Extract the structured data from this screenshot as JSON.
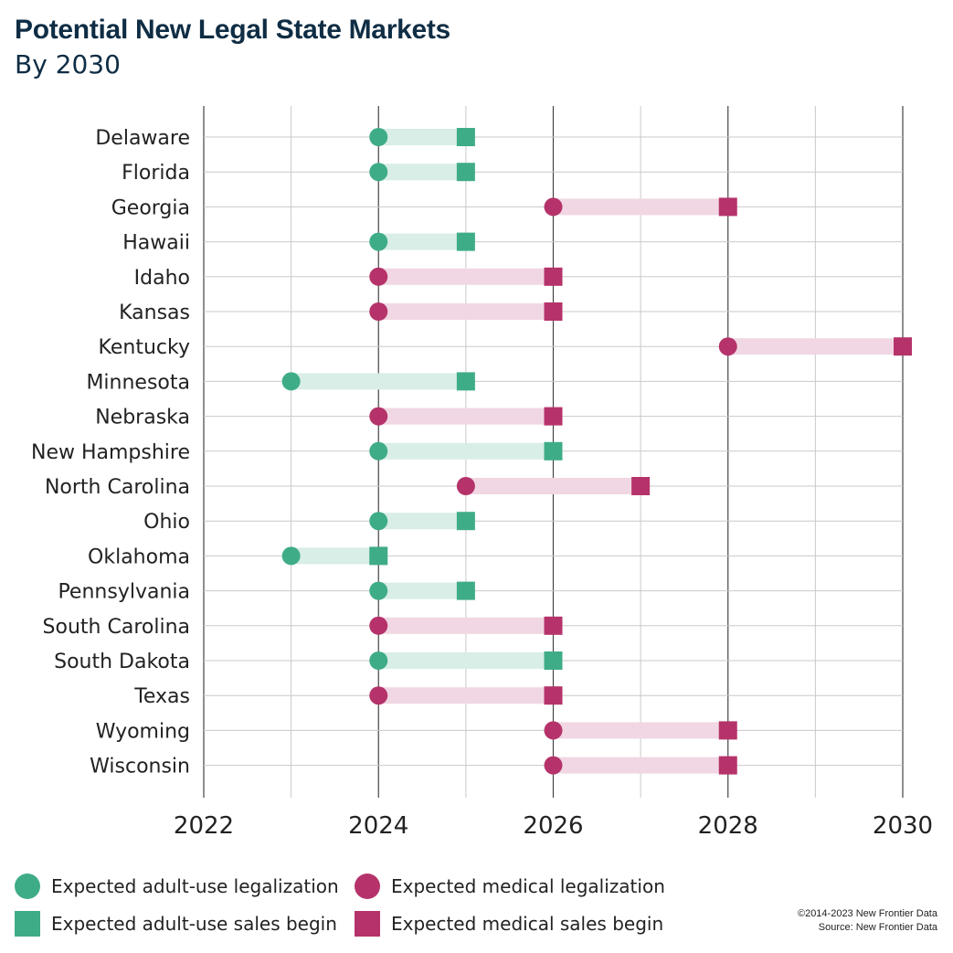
{
  "title": "Potential New Legal State Markets",
  "subtitle": "By 2030",
  "colors": {
    "adult_use": "#3fac88",
    "adult_use_bar": "#d8eee7",
    "medical": "#b5336a",
    "medical_bar": "#f1d7e3",
    "grid": "#c9c9c9",
    "major_grid": "#444444"
  },
  "legend": [
    {
      "label": "Expected adult-use legalization",
      "shape": "circle",
      "color": "#3fac88"
    },
    {
      "label": "Expected medical legalization",
      "shape": "circle",
      "color": "#b5336a"
    },
    {
      "label": "Expected adult-use sales begin",
      "shape": "square",
      "color": "#3fac88"
    },
    {
      "label": "Expected medical sales begin",
      "shape": "square",
      "color": "#b5336a"
    }
  ],
  "credit": {
    "line1": "©2014-2023  New Frontier Data",
    "line2": "Source: New Frontier Data"
  },
  "chart_data": {
    "type": "dumbbell",
    "title": "Potential New Legal State Markets",
    "subtitle": "By 2030",
    "x_ticks": [
      "2022",
      "2024",
      "2026",
      "2028",
      "2030"
    ],
    "xlim": [
      2022,
      2030
    ],
    "grid": true,
    "legend_position": "bottom",
    "rows": [
      {
        "state": "Delaware",
        "type": "adult-use",
        "legalization": 2024,
        "sales": 2025
      },
      {
        "state": "Florida",
        "type": "adult-use",
        "legalization": 2024,
        "sales": 2025
      },
      {
        "state": "Georgia",
        "type": "medical",
        "legalization": 2026,
        "sales": 2028
      },
      {
        "state": "Hawaii",
        "type": "adult-use",
        "legalization": 2024,
        "sales": 2025
      },
      {
        "state": "Idaho",
        "type": "medical",
        "legalization": 2024,
        "sales": 2026
      },
      {
        "state": "Kansas",
        "type": "medical",
        "legalization": 2024,
        "sales": 2026
      },
      {
        "state": "Kentucky",
        "type": "medical",
        "legalization": 2028,
        "sales": 2030
      },
      {
        "state": "Minnesota",
        "type": "adult-use",
        "legalization": 2023,
        "sales": 2025
      },
      {
        "state": "Nebraska",
        "type": "medical",
        "legalization": 2024,
        "sales": 2026
      },
      {
        "state": "New Hampshire",
        "type": "adult-use",
        "legalization": 2024,
        "sales": 2026
      },
      {
        "state": "North Carolina",
        "type": "medical",
        "legalization": 2025,
        "sales": 2027
      },
      {
        "state": "Ohio",
        "type": "adult-use",
        "legalization": 2024,
        "sales": 2025
      },
      {
        "state": "Oklahoma",
        "type": "adult-use",
        "legalization": 2023,
        "sales": 2024
      },
      {
        "state": "Pennsylvania",
        "type": "adult-use",
        "legalization": 2024,
        "sales": 2025
      },
      {
        "state": "South Carolina",
        "type": "medical",
        "legalization": 2024,
        "sales": 2026
      },
      {
        "state": "South Dakota",
        "type": "adult-use",
        "legalization": 2024,
        "sales": 2026
      },
      {
        "state": "Texas",
        "type": "medical",
        "legalization": 2024,
        "sales": 2026
      },
      {
        "state": "Wyoming",
        "type": "medical",
        "legalization": 2026,
        "sales": 2028
      },
      {
        "state": "Wisconsin",
        "type": "medical",
        "legalization": 2026,
        "sales": 2028
      }
    ]
  }
}
